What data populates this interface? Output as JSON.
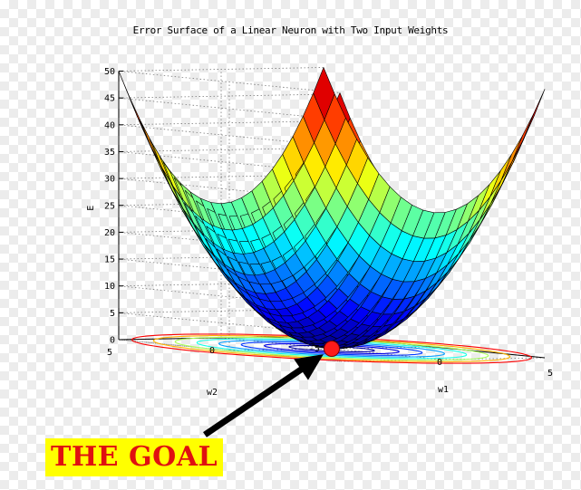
{
  "chart_data": {
    "type": "surface",
    "title": "Error Surface of a Linear Neuron with Two Input Weights",
    "xlabel": "w1",
    "ylabel": "w2",
    "zlabel": "E",
    "xlim": [
      -5,
      5
    ],
    "ylim": [
      -5,
      5
    ],
    "zlim": [
      0,
      50
    ],
    "x_ticks": [
      -5,
      0,
      5
    ],
    "y_ticks": [
      -5,
      0,
      5
    ],
    "z_ticks": [
      0,
      5,
      10,
      15,
      20,
      25,
      30,
      35,
      40,
      45,
      50
    ],
    "function": "E = w1^2 + w2^2",
    "grid": true,
    "colormap": "jet",
    "minimum": {
      "w1": 0,
      "w2": 0,
      "E": 0
    },
    "contours_on_base": true
  },
  "annotation": {
    "label": "THE GOAL",
    "label_color": "#e01010",
    "label_background": "#ffff00",
    "marker_color": "#ff1a1a",
    "arrow_color": "#000000"
  }
}
